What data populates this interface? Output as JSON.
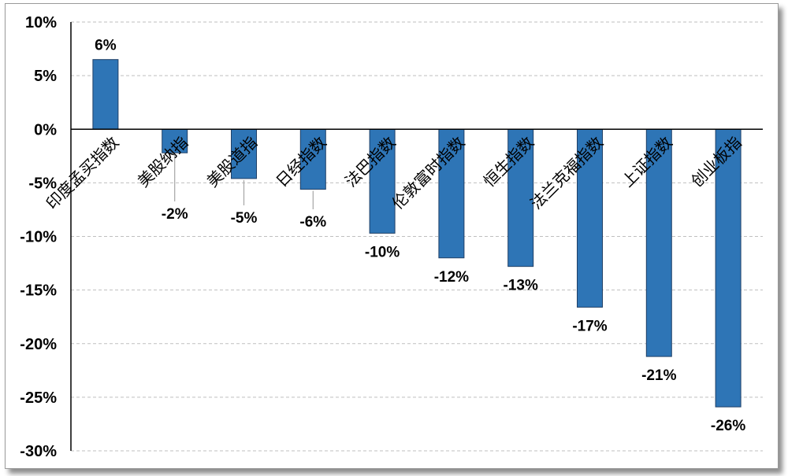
{
  "colors": {
    "bar_fill": "#2e75b6",
    "bar_stroke": "#1f3f66",
    "grid": "#bfbfbf",
    "axis": "#000000",
    "leader": "#a6a6a6"
  },
  "chart_data": {
    "type": "bar",
    "title": "",
    "xlabel": "",
    "ylabel": "",
    "categories": [
      "印度孟买指数",
      "美股纳指",
      "美股道指",
      "日经指数",
      "法巴指数",
      "伦敦富时指数",
      "恒生指数",
      "法兰克福指数",
      "上证指数",
      "创业板指"
    ],
    "values": [
      6.5,
      -2.2,
      -4.6,
      -5.6,
      -9.7,
      -12.0,
      -12.8,
      -16.6,
      -21.2,
      -25.9
    ],
    "data_labels": [
      "6%",
      "-2%",
      "-5%",
      "-6%",
      "-10%",
      "-12%",
      "-13%",
      "-17%",
      "-21%",
      "-26%"
    ],
    "ylim": [
      -30,
      10
    ],
    "yticks": [
      10,
      5,
      0,
      -5,
      -10,
      -15,
      -20,
      -25,
      -30
    ],
    "ytick_labels": [
      "10%",
      "5%",
      "0%",
      "-5%",
      "-10%",
      "-15%",
      "-20%",
      "-25%",
      "-30%"
    ],
    "grid": true,
    "legend": "none"
  }
}
